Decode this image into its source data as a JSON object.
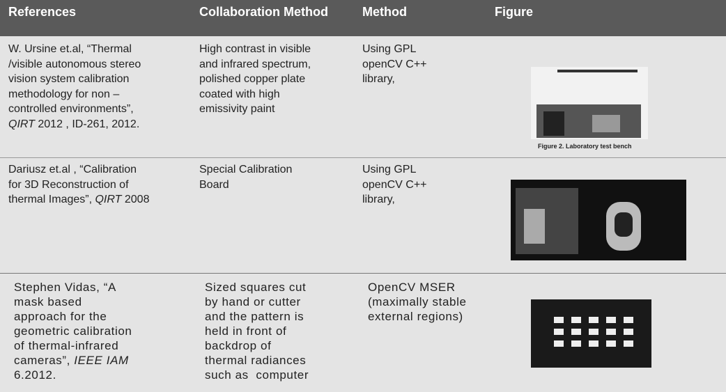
{
  "table": {
    "header": [
      "References",
      "Collaboration Method",
      "Method",
      "Figure"
    ],
    "rows": [
      {
        "reference": [
          "W. Ursine et.al, “Thermal",
          "/visible autonomous stereo",
          "vision system calibration",
          "methodology for non –",
          "controlled environments”,",
          [
            {
              "text": "QIRT",
              "italic": true
            },
            {
              "text": " 2012 , ID-261, 2012."
            }
          ]
        ],
        "collaboration": [
          "High contrast in visible",
          "and infrared spectrum,",
          "polished copper plate",
          "coated with high",
          "emissivity paint"
        ],
        "method": [
          "Using GPL",
          "openCV C++",
          "library,"
        ],
        "figure_caption": "Figure 2. Laboratory test bench"
      },
      {
        "reference": [
          "Dariusz et.al , “Calibration",
          "for 3D Reconstruction of",
          [
            {
              "text": "thermal Images”, "
            },
            {
              "text": "QIRT",
              "italic": true
            },
            {
              "text": " 2008"
            }
          ]
        ],
        "collaboration": [
          "Special Calibration",
          "Board"
        ],
        "method": [
          "Using GPL",
          "openCV C++",
          "library,"
        ]
      },
      {
        "reference": [
          "Stephen Vidas, “A",
          "mask based",
          "approach for the",
          "geometric calibration",
          "of thermal-infrared",
          [
            {
              "text": "cameras”, "
            },
            {
              "text": "IEEE IAM",
              "italic": true
            }
          ],
          "6.2012."
        ],
        "collaboration": [
          "Sized squares cut",
          "by hand or cutter",
          "and the pattern is",
          "held in front of",
          "backdrop of",
          "thermal radiances",
          "such as  computer"
        ],
        "method": [
          "OpenCV MSER",
          "(maximally stable",
          "external regions)"
        ]
      }
    ]
  }
}
